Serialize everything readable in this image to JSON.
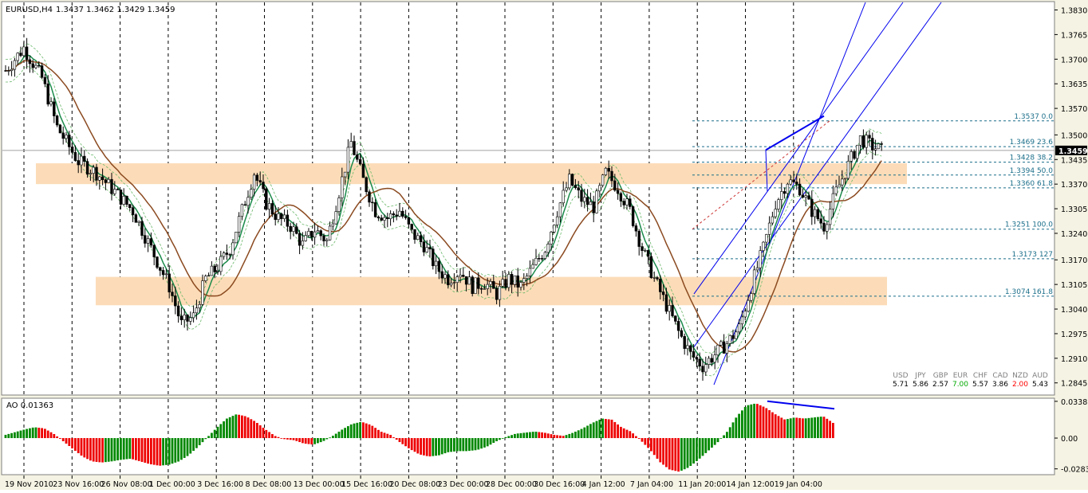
{
  "chart_data": {
    "type": "candlestick",
    "symbol": "EURUSD",
    "timeframe": "H4",
    "header": {
      "symbol_tf": "EURUSD,H4",
      "quote": "1.3437 1.3462 1.3429 1.3459"
    },
    "ylim": [
      1.2815,
      1.385
    ],
    "y_ticks": [
      "1.3830",
      "1.3765",
      "1.3700",
      "1.3635",
      "1.3570",
      "1.3500",
      "1.3435",
      "1.3370",
      "1.3305",
      "1.3240",
      "1.3170",
      "1.3105",
      "1.3040",
      "1.2975",
      "1.2910",
      "1.2845"
    ],
    "current_price": 1.3459,
    "current_price_label": "1.3459",
    "x_labels": [
      "19 Nov 2010",
      "23 Nov 16:00",
      "26 Nov 08:00",
      "1 Dec 00:00",
      "3 Dec 16:00",
      "8 Dec 08:00",
      "13 Dec 00:00",
      "15 Dec 16:00",
      "20 Dec 08:00",
      "23 Dec 00:00",
      "28 Dec 00:00",
      "30 Dec 16:00",
      "4 Jan 12:00",
      "7 Jan 04:00",
      "11 Jan 20:00",
      "14 Jan 12:00",
      "19 Jan 04:00"
    ],
    "fibonacci": [
      {
        "label": "1.3537 0.0",
        "price": 1.3537
      },
      {
        "label": "1.3469 23.6",
        "price": 1.3469
      },
      {
        "label": "1.3428 38.2",
        "price": 1.3428
      },
      {
        "label": "1.3394 50.0",
        "price": 1.3394
      },
      {
        "label": "1.3360 61.8",
        "price": 1.336
      },
      {
        "label": "1.3251 100.0",
        "price": 1.3251
      },
      {
        "label": "1.3173 127",
        "price": 1.3173
      },
      {
        "label": "1.3074 161.8",
        "price": 1.3074
      }
    ],
    "zones": [
      {
        "low": 1.337,
        "high": 1.3425
      },
      {
        "low": 1.305,
        "high": 1.3125
      }
    ],
    "series_close_path": [
      [
        0,
        1.367
      ],
      [
        6,
        1.373
      ],
      [
        12,
        1.365
      ],
      [
        17,
        1.352
      ],
      [
        24,
        1.343
      ],
      [
        30,
        1.34
      ],
      [
        36,
        1.335
      ],
      [
        42,
        1.33
      ],
      [
        48,
        1.32
      ],
      [
        54,
        1.31
      ],
      [
        58,
        1.3
      ],
      [
        62,
        1.302
      ],
      [
        66,
        1.312
      ],
      [
        70,
        1.315
      ],
      [
        74,
        1.32
      ],
      [
        78,
        1.33
      ],
      [
        82,
        1.34
      ],
      [
        86,
        1.332
      ],
      [
        90,
        1.328
      ],
      [
        94,
        1.326
      ],
      [
        98,
        1.321
      ],
      [
        102,
        1.325
      ],
      [
        106,
        1.322
      ],
      [
        110,
        1.335
      ],
      [
        114,
        1.348
      ],
      [
        118,
        1.338
      ],
      [
        122,
        1.33
      ],
      [
        126,
        1.328
      ],
      [
        130,
        1.33
      ],
      [
        134,
        1.324
      ],
      [
        138,
        1.321
      ],
      [
        142,
        1.315
      ],
      [
        146,
        1.312
      ],
      [
        150,
        1.314
      ],
      [
        154,
        1.31
      ],
      [
        158,
        1.311
      ],
      [
        162,
        1.308
      ],
      [
        166,
        1.312
      ],
      [
        170,
        1.31
      ],
      [
        174,
        1.315
      ],
      [
        178,
        1.32
      ],
      [
        182,
        1.33
      ],
      [
        186,
        1.338
      ],
      [
        190,
        1.333
      ],
      [
        194,
        1.331
      ],
      [
        198,
        1.34
      ],
      [
        202,
        1.336
      ],
      [
        206,
        1.33
      ],
      [
        210,
        1.32
      ],
      [
        214,
        1.312
      ],
      [
        218,
        1.305
      ],
      [
        222,
        1.298
      ],
      [
        226,
        1.292
      ],
      [
        230,
        1.289
      ],
      [
        234,
        1.292
      ],
      [
        238,
        1.295
      ],
      [
        242,
        1.299
      ],
      [
        246,
        1.31
      ],
      [
        250,
        1.32
      ],
      [
        254,
        1.332
      ],
      [
        258,
        1.338
      ],
      [
        262,
        1.336
      ],
      [
        266,
        1.33
      ],
      [
        270,
        1.326
      ],
      [
        274,
        1.335
      ],
      [
        278,
        1.342
      ],
      [
        282,
        1.349
      ],
      [
        286,
        1.347
      ],
      [
        289,
        1.3459
      ]
    ],
    "ao": {
      "label": "AO 0.01363",
      "ylim": [
        -0.033,
        0.036
      ],
      "y_ticks": [
        "0.03387",
        "0.00",
        "-0.02837"
      ],
      "values": [
        0.003,
        0.0055,
        0.008,
        0.01,
        0.009,
        0.004,
        -0.003,
        -0.01,
        -0.017,
        -0.0215,
        -0.0225,
        -0.0215,
        -0.02,
        -0.019,
        -0.0215,
        -0.024,
        -0.0255,
        -0.0245,
        -0.0215,
        -0.016,
        -0.008,
        0.001,
        0.01,
        0.018,
        0.022,
        0.02,
        0.015,
        0.008,
        0.002,
        -0.001,
        -0.002,
        -0.005,
        -0.006,
        -0.003,
        0.002,
        0.008,
        0.013,
        0.015,
        0.012,
        0.006,
        0.003,
        -0.004,
        -0.01,
        -0.015,
        -0.017,
        -0.016,
        -0.013,
        -0.012,
        -0.012,
        -0.011,
        -0.008,
        -0.003,
        0.001,
        0.004,
        0.005,
        0.006,
        0.005,
        0.003,
        0.002,
        0.005,
        0.009,
        0.014,
        0.018,
        0.017,
        0.01,
        0.006,
        -0.002,
        -0.011,
        -0.022,
        -0.029,
        -0.031,
        -0.027,
        -0.02,
        -0.012,
        -0.004,
        0.006,
        0.02,
        0.03,
        0.032,
        0.028,
        0.022,
        0.017,
        0.019,
        0.018,
        0.019,
        0.02,
        0.014
      ]
    },
    "currency_strength": {
      "labels": [
        "USD",
        "JPY",
        "GBP",
        "EUR",
        "CHF",
        "CAD",
        "NZD",
        "AUD"
      ],
      "values": [
        "5.71",
        "5.86",
        "2.57",
        "7.00",
        "5.57",
        "3.86",
        "2.00",
        "5.43"
      ],
      "value_colors": [
        "#000000",
        "#000000",
        "#000000",
        "#00aa00",
        "#000000",
        "#000000",
        "#ff0000",
        "#000000"
      ]
    },
    "colors": {
      "background": "#f5f3e3",
      "candle_bull": "#ffffff",
      "candle_bear": "#000000",
      "ma_fast": "#1a8a4a",
      "ma_slow": "#8b4a20",
      "zone": "#fcdcb8",
      "channel": "#0000ee",
      "fib": "#1a6e8a",
      "ao_up": "#008800",
      "ao_down": "#ee0000"
    }
  }
}
